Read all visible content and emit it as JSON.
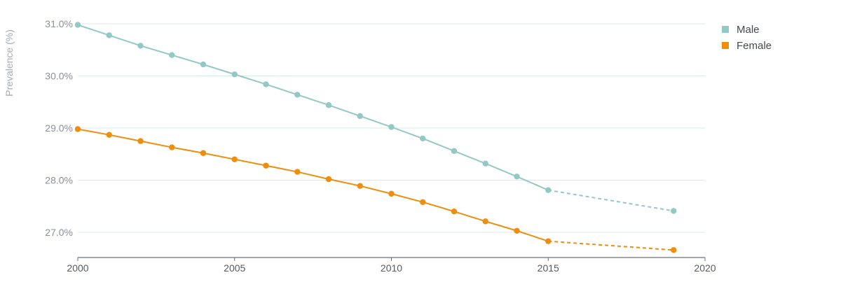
{
  "chart_data": {
    "type": "line",
    "title": "",
    "xlabel": "",
    "ylabel": "Prevalence (%)",
    "xlim": [
      2000,
      2020
    ],
    "ylim": [
      26.5,
      31.0
    ],
    "x_ticks": [
      {
        "value": 2000,
        "label": "2000"
      },
      {
        "value": 2005,
        "label": "2005"
      },
      {
        "value": 2010,
        "label": "2010"
      },
      {
        "value": 2015,
        "label": "2015"
      },
      {
        "value": 2020,
        "label": "2020"
      }
    ],
    "y_ticks": [
      {
        "value": 27.0,
        "label": "27.0%"
      },
      {
        "value": 28.0,
        "label": "28.0%"
      },
      {
        "value": 29.0,
        "label": "29.0%"
      },
      {
        "value": 30.0,
        "label": "30.0%"
      },
      {
        "value": 31.0,
        "label": "31.0%"
      }
    ],
    "grid": "horizontal",
    "legend_position": "top-right",
    "series": [
      {
        "name": "Male",
        "color": "#93c9c5",
        "x": [
          2000,
          2001,
          2002,
          2003,
          2004,
          2005,
          2006,
          2007,
          2008,
          2009,
          2010,
          2011,
          2012,
          2013,
          2014,
          2015
        ],
        "y": [
          30.98,
          30.78,
          30.58,
          30.4,
          30.22,
          30.03,
          29.84,
          29.64,
          29.44,
          29.23,
          29.02,
          28.8,
          28.56,
          28.32,
          28.07,
          27.81
        ],
        "projection": {
          "x": [
            2015,
            2019
          ],
          "y": [
            27.81,
            27.41
          ],
          "style": "dashed"
        }
      },
      {
        "name": "Female",
        "color": "#ef8d0c",
        "x": [
          2000,
          2001,
          2002,
          2003,
          2004,
          2005,
          2006,
          2007,
          2008,
          2009,
          2010,
          2011,
          2012,
          2013,
          2014,
          2015
        ],
        "y": [
          28.98,
          28.87,
          28.75,
          28.63,
          28.52,
          28.4,
          28.28,
          28.16,
          28.02,
          27.89,
          27.74,
          27.58,
          27.4,
          27.21,
          27.03,
          26.83
        ],
        "projection": {
          "x": [
            2015,
            2019
          ],
          "y": [
            26.83,
            26.66
          ],
          "style": "dashed"
        }
      }
    ]
  }
}
